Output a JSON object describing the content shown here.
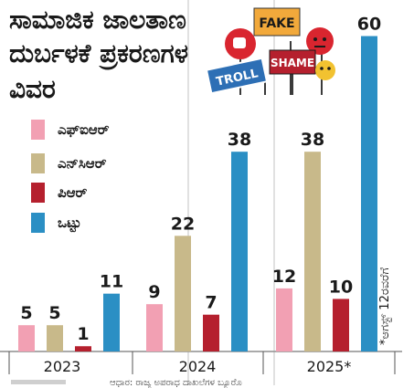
{
  "title_lines": [
    "ಸಾಮಾಜಿಕ ಜಾಲತಾಣ",
    "ದುರ್ಬಳಕೆ ಪ್ರಕರಣಗಳ",
    "ವಿವರ"
  ],
  "footnote": "*ಆಗಸ್ಟ್‌ 12ರವರೆಗೆ",
  "bottom_note": "ಆಧಾರ: ರಾಜ್ಯ ಅಪರಾಧ ದಾಖಲೆಗಳ ಬ್ಯೂರೊ",
  "illustration": {
    "signs": [
      "FAKE",
      "TROLL",
      "SHAME"
    ],
    "icons": [
      "thumbs-down-icon",
      "angry-face-icon",
      "pleading-face-icon"
    ]
  },
  "colors": {
    "fir": "#f2a0b3",
    "ncr": "#c8b98a",
    "pr": "#b5202e",
    "total": "#2b8fc4",
    "text": "#1a1a1a"
  },
  "chart_data": {
    "type": "bar",
    "categories": [
      "2023",
      "2024",
      "2025*"
    ],
    "series": [
      {
        "name": "ಎಫ್‌ಐಆರ್",
        "values": [
          5,
          9,
          12
        ]
      },
      {
        "name": "ಎನ್‌ಸಿಆರ್",
        "values": [
          5,
          22,
          38
        ]
      },
      {
        "name": "ಪಿಆರ್",
        "values": [
          1,
          7,
          10
        ]
      },
      {
        "name": "ಒಟ್ಟು",
        "values": [
          11,
          38,
          60
        ]
      }
    ],
    "ylim": [
      0,
      62
    ],
    "legend_position": "top-left",
    "grid": false
  }
}
